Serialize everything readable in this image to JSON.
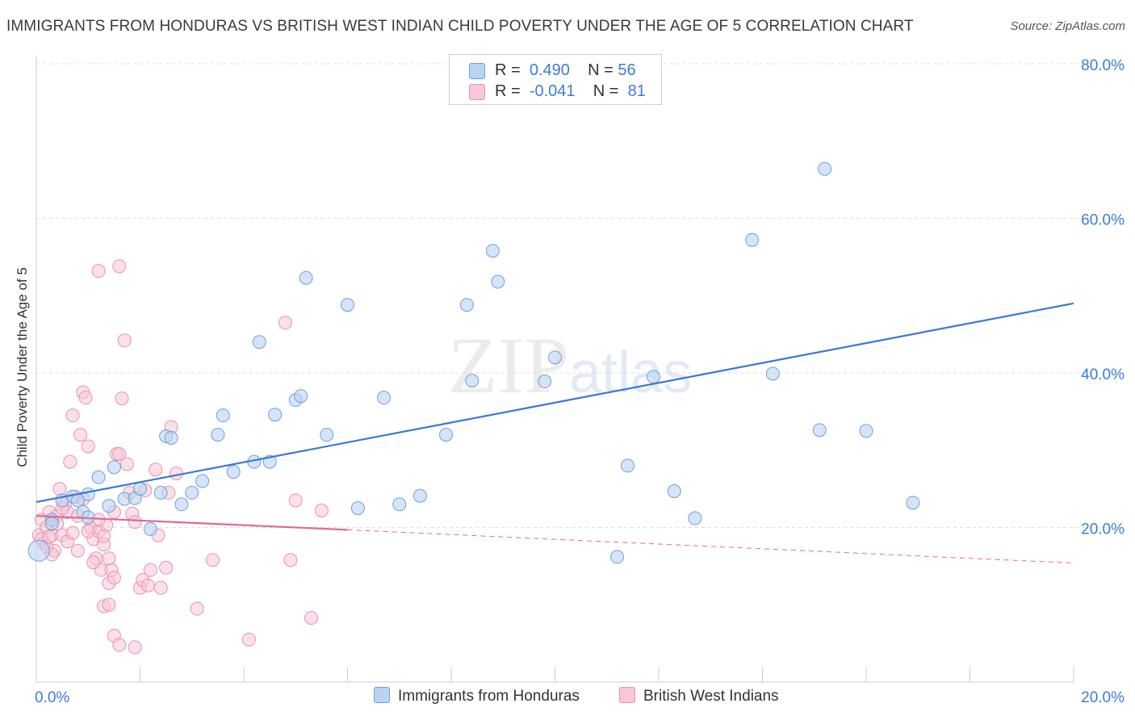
{
  "title": "IMMIGRANTS FROM HONDURAS VS BRITISH WEST INDIAN CHILD POVERTY UNDER THE AGE OF 5 CORRELATION CHART",
  "source": "Source: ZipAtlas.com",
  "watermark": {
    "zip": "ZIP",
    "atlas": "atlas"
  },
  "legend": {
    "r_label": "R =",
    "n_label": "N =",
    "rows": [
      {
        "r": "0.490",
        "n": "56"
      },
      {
        "r": "-0.041",
        "n": "81"
      }
    ]
  },
  "colors": {
    "blue_fill": "#b9d3f2",
    "blue_stroke": "#6f9fd8",
    "blue_line": "#3a78d4",
    "pink_fill": "#f9c6d6",
    "pink_stroke": "#e891ae",
    "pink_line": "#e06a95",
    "tick_label": "#3b7dd8",
    "grid": "#dddddd"
  },
  "chart_data": {
    "type": "scatter",
    "title": "IMMIGRANTS FROM HONDURAS VS BRITISH WEST INDIAN CHILD POVERTY UNDER THE AGE OF 5 CORRELATION CHART",
    "xlabel": "",
    "ylabel": "Child Poverty Under the Age of 5",
    "xlim": [
      0,
      20
    ],
    "ylim": [
      0,
      80
    ],
    "x_tick_labels": [
      "0.0%",
      "20.0%"
    ],
    "y_tick_labels": [
      "20.0%",
      "40.0%",
      "60.0%",
      "80.0%"
    ],
    "y_ticks": [
      20,
      40,
      60,
      80
    ],
    "grid": true,
    "legend_position": "top-center",
    "series": [
      {
        "name": "Immigrants from Honduras",
        "color": "#b9d3f2",
        "trend": {
          "x": [
            0,
            20
          ],
          "y": [
            23.3,
            49
          ]
        },
        "points": [
          [
            0.05,
            17
          ],
          [
            0.3,
            21
          ],
          [
            0.5,
            23.5
          ],
          [
            0.7,
            24
          ],
          [
            0.9,
            22
          ],
          [
            0.8,
            23.5
          ],
          [
            1.0,
            24.3
          ],
          [
            1.2,
            26.5
          ],
          [
            1.4,
            22.8
          ],
          [
            1.5,
            27.8
          ],
          [
            1.7,
            23.7
          ],
          [
            1.9,
            23.8
          ],
          [
            2.0,
            25
          ],
          [
            2.2,
            19.8
          ],
          [
            2.4,
            24.5
          ],
          [
            2.5,
            31.8
          ],
          [
            2.6,
            31.6
          ],
          [
            2.8,
            23
          ],
          [
            3.0,
            24.5
          ],
          [
            3.2,
            26
          ],
          [
            3.5,
            32
          ],
          [
            3.6,
            34.5
          ],
          [
            3.8,
            27.2
          ],
          [
            4.2,
            28.5
          ],
          [
            4.3,
            44
          ],
          [
            4.5,
            28.5
          ],
          [
            4.6,
            34.6
          ],
          [
            5.0,
            36.5
          ],
          [
            5.1,
            37
          ],
          [
            5.2,
            52.3
          ],
          [
            5.6,
            32
          ],
          [
            6.0,
            48.8
          ],
          [
            6.2,
            22.5
          ],
          [
            6.7,
            36.8
          ],
          [
            7.0,
            23
          ],
          [
            7.4,
            24.1
          ],
          [
            7.9,
            32
          ],
          [
            8.3,
            48.8
          ],
          [
            8.4,
            39
          ],
          [
            8.8,
            55.8
          ],
          [
            8.9,
            51.8
          ],
          [
            9.8,
            38.9
          ],
          [
            10.0,
            42
          ],
          [
            11.2,
            16.2
          ],
          [
            11.4,
            28
          ],
          [
            11.9,
            39.5
          ],
          [
            12.3,
            24.7
          ],
          [
            12.7,
            21.2
          ],
          [
            13.8,
            57.2
          ],
          [
            14.2,
            39.9
          ],
          [
            15.1,
            32.6
          ],
          [
            15.2,
            66.4
          ],
          [
            16.0,
            32.5
          ],
          [
            16.9,
            23.2
          ],
          [
            0.3,
            20.5
          ],
          [
            1.0,
            21.3
          ]
        ]
      },
      {
        "name": "British West Indians",
        "color": "#f9c6d6",
        "trend": {
          "x": [
            0,
            6
          ],
          "y": [
            21.5,
            19.7
          ]
        },
        "trend_dashed": {
          "x": [
            6,
            20
          ],
          "y": [
            19.7,
            15.4
          ]
        },
        "points": [
          [
            0.05,
            19
          ],
          [
            0.1,
            21
          ],
          [
            0.15,
            18
          ],
          [
            0.2,
            20
          ],
          [
            0.25,
            22
          ],
          [
            0.3,
            19
          ],
          [
            0.35,
            17
          ],
          [
            0.4,
            21.5
          ],
          [
            0.45,
            25
          ],
          [
            0.5,
            19
          ],
          [
            0.55,
            23
          ],
          [
            0.6,
            22
          ],
          [
            0.65,
            28.5
          ],
          [
            0.7,
            34.5
          ],
          [
            0.75,
            24
          ],
          [
            0.8,
            21.5
          ],
          [
            0.85,
            32
          ],
          [
            0.9,
            37.5
          ],
          [
            0.95,
            36.8
          ],
          [
            1.0,
            30.5
          ],
          [
            1.05,
            20
          ],
          [
            1.1,
            18.5
          ],
          [
            1.15,
            16
          ],
          [
            1.2,
            19.5
          ],
          [
            1.25,
            14.5
          ],
          [
            1.3,
            17.8
          ],
          [
            1.35,
            20.3
          ],
          [
            1.4,
            12.8
          ],
          [
            1.45,
            14.5
          ],
          [
            1.5,
            13.5
          ],
          [
            1.55,
            29.5
          ],
          [
            1.6,
            29.5
          ],
          [
            1.65,
            36.7
          ],
          [
            1.7,
            44.2
          ],
          [
            1.75,
            28.2
          ],
          [
            1.8,
            24.5
          ],
          [
            1.85,
            21.8
          ],
          [
            1.9,
            20.7
          ],
          [
            2.0,
            12.2
          ],
          [
            2.05,
            13.2
          ],
          [
            2.1,
            24.8
          ],
          [
            2.15,
            12.5
          ],
          [
            2.2,
            14.5
          ],
          [
            2.3,
            27.5
          ],
          [
            2.35,
            19
          ],
          [
            2.4,
            12.2
          ],
          [
            2.5,
            14.8
          ],
          [
            2.55,
            24.5
          ],
          [
            2.6,
            33
          ],
          [
            2.7,
            27
          ],
          [
            1.2,
            53.2
          ],
          [
            1.6,
            53.8
          ],
          [
            1.3,
            9.8
          ],
          [
            1.4,
            10
          ],
          [
            1.5,
            6
          ],
          [
            1.6,
            4.8
          ],
          [
            1.9,
            4.5
          ],
          [
            3.1,
            9.5
          ],
          [
            3.4,
            15.8
          ],
          [
            4.1,
            5.5
          ],
          [
            4.8,
            46.5
          ],
          [
            4.9,
            15.8
          ],
          [
            5.0,
            23.5
          ],
          [
            5.3,
            8.3
          ],
          [
            5.5,
            22.2
          ],
          [
            0.1,
            18.5
          ],
          [
            0.2,
            17.5
          ],
          [
            0.3,
            16.5
          ],
          [
            0.4,
            20.5
          ],
          [
            0.5,
            22.5
          ],
          [
            0.6,
            18.2
          ],
          [
            0.7,
            19.3
          ],
          [
            0.8,
            17
          ],
          [
            0.9,
            23.7
          ],
          [
            1.0,
            19.5
          ],
          [
            1.1,
            15.5
          ],
          [
            1.2,
            21
          ],
          [
            1.3,
            18.9
          ],
          [
            1.4,
            16
          ],
          [
            1.5,
            22
          ],
          [
            0.25,
            18.8
          ]
        ]
      }
    ]
  },
  "bottom_legend": [
    {
      "label": "Immigrants from Honduras"
    },
    {
      "label": "British West Indians"
    }
  ]
}
